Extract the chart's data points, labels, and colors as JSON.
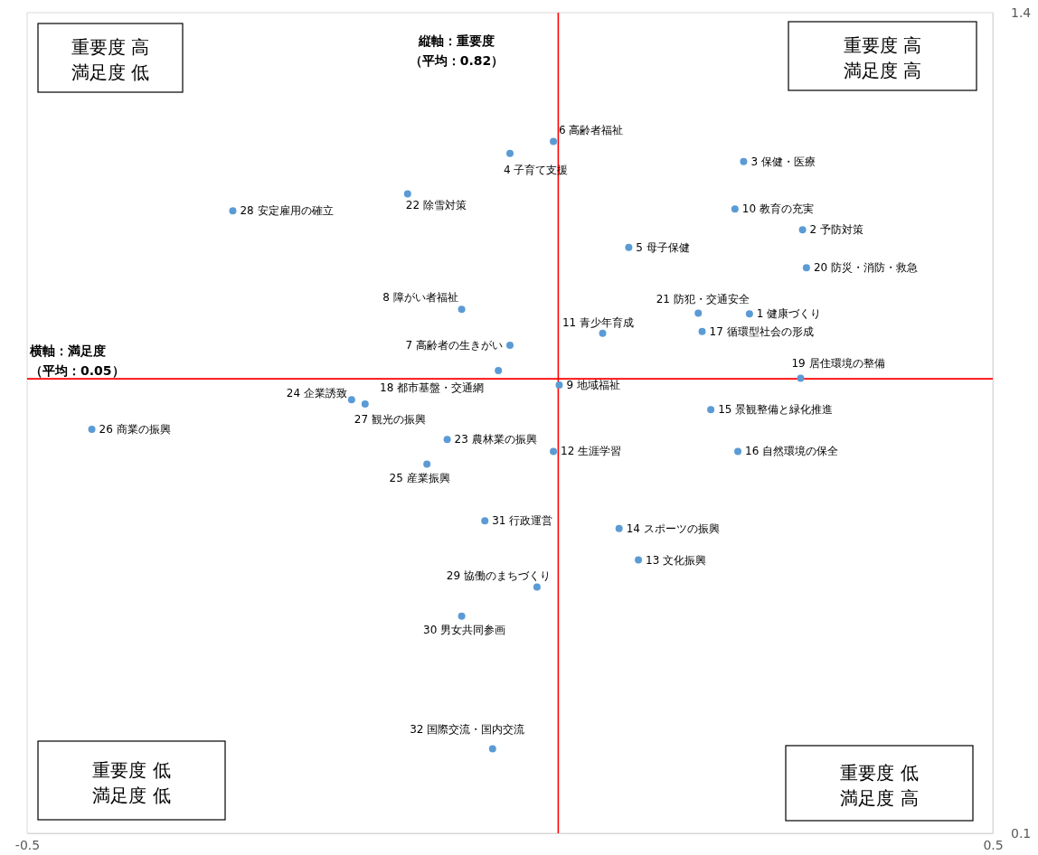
{
  "chart_data": {
    "type": "scatter",
    "xlim": [
      -0.5,
      0.5
    ],
    "ylim": [
      0.1,
      1.4
    ],
    "xticks": [
      -0.5,
      0.5
    ],
    "yticks": [
      0.1,
      1.4
    ],
    "marker": "circle",
    "x": [
      0.248,
      0.303,
      0.242,
      0.0,
      0.123,
      0.045,
      0.0,
      -0.05,
      0.051,
      0.233,
      0.096,
      0.045,
      0.133,
      0.113,
      0.208,
      0.236,
      0.199,
      -0.012,
      0.301,
      0.307,
      0.195,
      -0.106,
      -0.065,
      -0.164,
      -0.086,
      -0.433,
      -0.15,
      -0.287,
      0.028,
      -0.05,
      -0.026,
      -0.018
    ],
    "series": [
      {
        "color": "#5b9bd5",
        "values": [
          0.923,
          1.056,
          1.164,
          1.177,
          1.028,
          1.196,
          0.873,
          0.93,
          0.81,
          1.089,
          0.892,
          0.705,
          0.533,
          0.583,
          0.771,
          0.705,
          0.895,
          0.833,
          0.821,
          0.996,
          0.924,
          1.113,
          0.724,
          0.787,
          0.685,
          0.74,
          0.78,
          1.086,
          0.49,
          0.444,
          0.595,
          0.234
        ]
      }
    ],
    "ref_lines": [
      {
        "axis": "x",
        "value": 0.05,
        "color": "#ff0000"
      },
      {
        "axis": "y",
        "value": 0.82,
        "color": "#ff0000"
      }
    ],
    "annotations": [
      "重要度 高",
      "満足度 低",
      "重要度 高",
      "満足度 高",
      "重要度 低",
      "満足度 低",
      "重要度 低",
      "満足度 高",
      "縦軸：重要度",
      "（平均：0.82）",
      "横軸：満足度",
      "（平均：0.05）",
      {
        "text": "1 健康づくり",
        "x": 0.248,
        "y": 0.923
      },
      {
        "text": "2 予防対策",
        "x": 0.303,
        "y": 1.056
      },
      {
        "text": "3 保健・医療",
        "x": 0.242,
        "y": 1.164
      },
      {
        "text": "4 子育て支援",
        "x": 0.0,
        "y": 1.177
      },
      {
        "text": "5 母子保健",
        "x": 0.123,
        "y": 1.028
      },
      {
        "text": "6 高齢者福祉",
        "x": 0.045,
        "y": 1.196
      },
      {
        "text": "7 高齢者の生きがい",
        "x": 0.0,
        "y": 0.873
      },
      {
        "text": "8 障がい者福祉",
        "x": -0.05,
        "y": 0.93
      },
      {
        "text": "9 地域福祉",
        "x": 0.051,
        "y": 0.81
      },
      {
        "text": "10 教育の充実",
        "x": 0.233,
        "y": 1.089
      },
      {
        "text": "11 青少年育成",
        "x": 0.096,
        "y": 0.892
      },
      {
        "text": "12 生涯学習",
        "x": 0.045,
        "y": 0.705
      },
      {
        "text": "13 文化振興",
        "x": 0.133,
        "y": 0.533
      },
      {
        "text": "14 スポーツの振興",
        "x": 0.113,
        "y": 0.583
      },
      {
        "text": "15 景観整備と緑化推進",
        "x": 0.208,
        "y": 0.771
      },
      {
        "text": "16 自然環境の保全",
        "x": 0.236,
        "y": 0.705
      },
      {
        "text": "17 循環型社会の形成",
        "x": 0.199,
        "y": 0.895
      },
      {
        "text": "18 都市基盤・交通網",
        "x": -0.012,
        "y": 0.833
      },
      {
        "text": "19 居住環境の整備",
        "x": 0.301,
        "y": 0.821
      },
      {
        "text": "20 防災・消防・救急",
        "x": 0.307,
        "y": 0.996
      },
      {
        "text": "21 防犯・交通安全",
        "x": 0.195,
        "y": 0.924
      },
      {
        "text": "22 除雪対策",
        "x": -0.106,
        "y": 1.113
      },
      {
        "text": "23 農林業の振興",
        "x": -0.065,
        "y": 0.724
      },
      {
        "text": "24 企業誘致",
        "x": -0.164,
        "y": 0.787
      },
      {
        "text": "25 産業振興",
        "x": -0.086,
        "y": 0.685
      },
      {
        "text": "26 商業の振興",
        "x": -0.433,
        "y": 0.74
      },
      {
        "text": "27 観光の振興",
        "x": -0.15,
        "y": 0.78
      },
      {
        "text": "28 安定雇用の確立",
        "x": -0.287,
        "y": 1.086
      },
      {
        "text": "29 協働のまちづくり",
        "x": 0.028,
        "y": 0.49
      },
      {
        "text": "30 男女共同参画",
        "x": -0.05,
        "y": 0.444
      },
      {
        "text": "31 行政運営",
        "x": -0.026,
        "y": 0.595
      },
      {
        "text": "32 国際交流・国内交流",
        "x": -0.018,
        "y": 0.234
      }
    ]
  }
}
